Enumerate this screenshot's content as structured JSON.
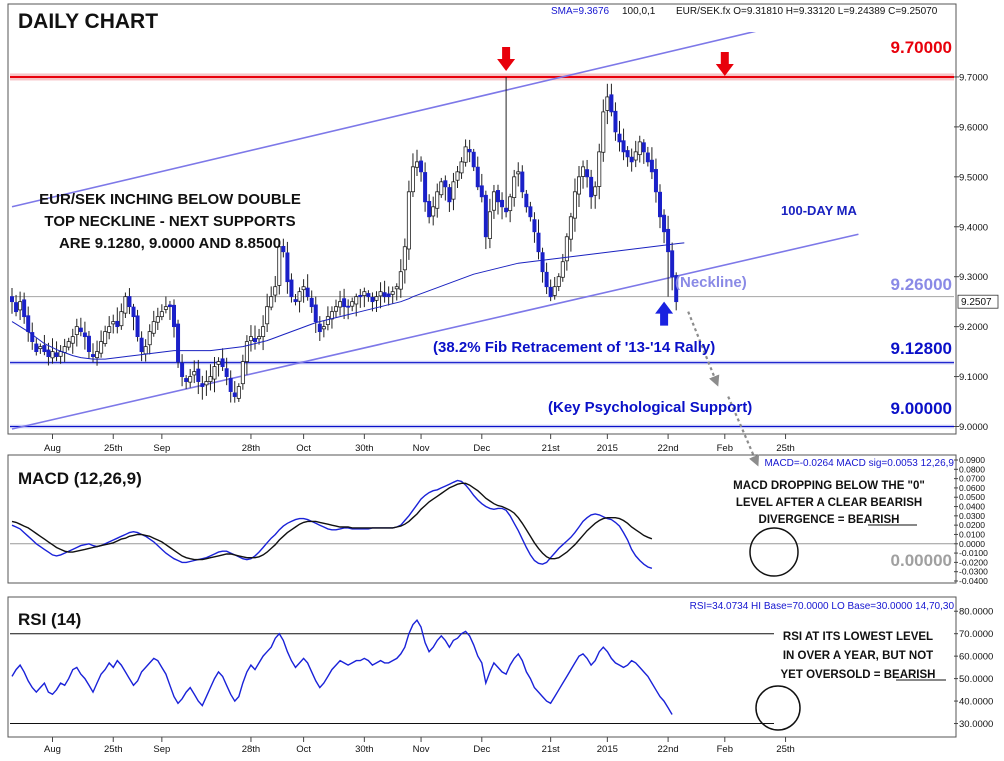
{
  "header": {
    "title": "DAILY CHART",
    "sma_label": "SMA=9.3676",
    "sma_params": "100,0,1",
    "ohlc": "EUR/SEK.fx O=9.31810 H=9.33120 L=9.24389 C=9.25070"
  },
  "price_panel": {
    "annotation_lines": [
      "EUR/SEK INCHING BELOW DOUBLE",
      "TOP NECKLINE - NEXT SUPPORTS",
      "ARE 9.1280, 9.0000 AND 8.8500"
    ],
    "ma_label": "100-DAY MA",
    "neckline_label": "(Neckline)",
    "fib_label": "(38.2% Fib Retracement of '13-'14 Rally)",
    "psych_label": "(Key Psychological Support)",
    "levels": [
      {
        "value": 9.7,
        "label": "9.70000",
        "color": "#e8000b"
      },
      {
        "value": 9.26,
        "label": "9.26000",
        "color": "#8a8ae6"
      },
      {
        "value": 9.128,
        "label": "9.12800",
        "color": "#0a10c8"
      },
      {
        "value": 9.0,
        "label": "9.00000",
        "color": "#0a10c8"
      }
    ],
    "current_price_tag": "9.2507"
  },
  "macd_panel": {
    "title": "MACD (12,26,9)",
    "readout": "MACD=-0.0264 MACD sig=0.0053  12,26,9",
    "annotation_lines": [
      "MACD DROPPING BELOW THE \"0\"",
      "LEVEL AFTER A CLEAR BEARISH",
      "DIVERGENCE = BEARISH"
    ],
    "emph_word": "BEARISH",
    "zero_label": "0.00000"
  },
  "rsi_panel": {
    "title": "RSI (14)",
    "readout": "RSI=34.0734 HI Base=70.0000 LO Base=30.0000   14,70,30",
    "annotation_lines": [
      "RSI AT ITS LOWEST LEVEL",
      "IN OVER A YEAR, BUT NOT",
      "YET OVERSOLD = BEARISH"
    ],
    "emph_word": "BEARISH"
  },
  "x_axis": {
    "ticks": [
      {
        "t": 10,
        "label": "Aug"
      },
      {
        "t": 25,
        "label": "25th"
      },
      {
        "t": 37,
        "label": "Sep"
      },
      {
        "t": 59,
        "label": "28th"
      },
      {
        "t": 72,
        "label": "Oct"
      },
      {
        "t": 87,
        "label": "30th"
      },
      {
        "t": 101,
        "label": "Nov"
      },
      {
        "t": 116,
        "label": "Dec"
      },
      {
        "t": 133,
        "label": "21st"
      },
      {
        "t": 147,
        "label": "2015"
      },
      {
        "t": 162,
        "label": "22nd"
      },
      {
        "t": 176,
        "label": "Feb"
      },
      {
        "t": 191,
        "label": "25th"
      }
    ]
  },
  "chart_data": [
    {
      "type": "candlestick",
      "title": "DAILY CHART",
      "symbol": "EUR/SEK",
      "y_ticks": [
        9.0,
        9.1,
        9.2,
        9.3,
        9.4,
        9.5,
        9.6,
        9.7
      ],
      "y_tick_labels": [
        "9.0000",
        "9.1000",
        "9.2000",
        "9.3000",
        "9.4000",
        "9.5000",
        "9.6000",
        "9.7000"
      ],
      "ylim": [
        8.985,
        9.79
      ],
      "series": [
        {
          "name": "EUR/SEK",
          "close": [
            9.25,
            9.23,
            9.25,
            9.22,
            9.19,
            9.17,
            9.15,
            9.16,
            9.15,
            9.14,
            9.15,
            9.14,
            9.15,
            9.16,
            9.17,
            9.18,
            9.2,
            9.19,
            9.18,
            9.15,
            9.14,
            9.15,
            9.17,
            9.19,
            9.2,
            9.21,
            9.2,
            9.23,
            9.26,
            9.24,
            9.22,
            9.18,
            9.15,
            9.16,
            9.19,
            9.21,
            9.22,
            9.23,
            9.24,
            9.24,
            9.2,
            9.13,
            9.1,
            9.09,
            9.1,
            9.11,
            9.09,
            9.08,
            9.09,
            9.1,
            9.12,
            9.13,
            9.12,
            9.1,
            9.07,
            9.06,
            9.08,
            9.13,
            9.17,
            9.18,
            9.17,
            9.18,
            9.2,
            9.24,
            9.26,
            9.28,
            9.36,
            9.35,
            9.29,
            9.26,
            9.25,
            9.27,
            9.28,
            9.26,
            9.24,
            9.21,
            9.19,
            9.2,
            9.22,
            9.23,
            9.24,
            9.25,
            9.24,
            9.24,
            9.25,
            9.26,
            9.26,
            9.27,
            9.26,
            9.25,
            9.26,
            9.27,
            9.26,
            9.26,
            9.27,
            9.28,
            9.31,
            9.36,
            9.47,
            9.52,
            9.53,
            9.51,
            9.45,
            9.42,
            9.44,
            9.47,
            9.49,
            9.48,
            9.45,
            9.49,
            9.51,
            9.53,
            9.56,
            9.55,
            9.52,
            9.48,
            9.46,
            9.38,
            9.43,
            9.47,
            9.45,
            9.44,
            9.43,
            9.46,
            9.5,
            9.51,
            9.47,
            9.44,
            9.42,
            9.39,
            9.35,
            9.31,
            9.28,
            9.26,
            9.28,
            9.3,
            9.33,
            9.38,
            9.42,
            9.47,
            9.5,
            9.52,
            9.5,
            9.46,
            9.48,
            9.55,
            9.63,
            9.66,
            9.63,
            9.59,
            9.57,
            9.55,
            9.54,
            9.53,
            9.55,
            9.57,
            9.55,
            9.53,
            9.51,
            9.47,
            9.42,
            9.39,
            9.35,
            9.3,
            9.25
          ],
          "sma100": [
            9.21,
            9.205,
            9.2,
            9.195,
            9.19,
            9.184,
            9.178,
            9.172,
            9.166,
            9.162,
            9.158,
            9.154,
            9.151,
            9.148,
            9.145,
            9.142,
            9.14,
            9.138,
            9.137,
            9.136,
            9.135,
            9.135,
            9.135,
            9.135,
            9.136,
            9.137,
            9.138,
            9.139,
            9.14,
            9.141,
            9.142,
            9.143,
            9.144,
            9.145,
            9.146,
            9.147,
            9.148,
            9.149,
            9.15,
            9.151,
            9.152,
            9.152,
            9.152,
            9.152,
            9.152,
            9.152,
            9.152,
            9.152,
            9.152,
            9.152,
            9.153,
            9.154,
            9.155,
            9.156,
            9.157,
            9.158,
            9.159,
            9.16,
            9.162,
            9.164,
            9.166,
            9.168,
            9.17,
            9.172,
            9.175,
            9.178,
            9.181,
            9.184,
            9.187,
            9.19,
            9.193,
            9.196,
            9.199,
            9.202,
            9.205,
            9.208,
            9.21,
            9.212,
            9.214,
            9.216,
            9.218,
            9.22,
            9.222,
            9.224,
            9.226,
            9.228,
            9.23,
            9.232,
            9.234,
            9.236,
            9.238,
            9.24,
            9.242,
            9.244,
            9.246,
            9.248,
            9.25,
            9.253,
            9.256,
            9.26,
            9.263,
            9.266,
            9.269,
            9.272,
            9.275,
            9.278,
            9.281,
            9.284,
            9.287,
            9.29,
            9.293,
            9.296,
            9.299,
            9.302,
            9.305,
            9.307,
            9.309,
            9.311,
            9.313,
            9.315,
            9.317,
            9.319,
            9.321,
            9.323,
            9.325,
            9.327,
            9.328,
            9.329,
            9.33,
            9.331,
            9.332,
            9.333,
            9.334,
            9.335,
            9.336,
            9.337,
            9.338,
            9.339,
            9.34,
            9.341,
            9.342,
            9.343,
            9.344,
            9.345,
            9.346,
            9.347,
            9.348,
            9.349,
            9.35,
            9.351,
            9.352,
            9.353,
            9.354,
            9.355,
            9.356,
            9.357,
            9.358,
            9.359,
            9.36,
            9.361,
            9.362,
            9.363,
            9.364,
            9.365,
            9.366,
            9.367,
            9.3676
          ]
        }
      ],
      "horizontal_levels": [
        9.7,
        9.26,
        9.128,
        9.0
      ],
      "trendlines": [
        {
          "name": "upper channel",
          "start": [
            0,
            9.44
          ],
          "end": [
            209,
            9.84
          ]
        },
        {
          "name": "neckline",
          "start": [
            0,
            8.995
          ],
          "end": [
            209,
            9.385
          ]
        }
      ],
      "peaks": [
        {
          "t": 122,
          "value": 9.7
        },
        {
          "t": 176,
          "value": 9.69
        }
      ],
      "trough": {
        "t": 162,
        "value": 9.26
      }
    },
    {
      "type": "line",
      "title": "MACD (12,26,9)",
      "y_ticks": [
        0.09,
        0.08,
        0.07,
        0.06,
        0.05,
        0.04,
        0.03,
        0.02,
        0.01,
        0.0,
        -0.01,
        -0.02,
        -0.03,
        -0.04
      ],
      "y_tick_labels": [
        "0.0900",
        "0.0800",
        "0.0700",
        "0.0600",
        "0.0500",
        "0.0400",
        "0.0300",
        "0.0200",
        "0.0100",
        "0.0000",
        "-0.0100",
        "-0.0200",
        "-0.0300",
        "-0.0400"
      ],
      "ylim": [
        -0.04,
        0.09
      ],
      "series": [
        {
          "name": "MACD",
          "values": [
            0.02,
            0.018,
            0.016,
            0.012,
            0.008,
            0.004,
            0.0,
            -0.003,
            -0.006,
            -0.009,
            -0.012,
            -0.013,
            -0.012,
            -0.01,
            -0.008,
            -0.006,
            -0.004,
            -0.002,
            -0.001,
            0.0,
            -0.002,
            -0.003,
            -0.002,
            0.0,
            0.002,
            0.004,
            0.006,
            0.008,
            0.01,
            0.012,
            0.013,
            0.012,
            0.01,
            0.008,
            0.005,
            0.002,
            -0.002,
            -0.006,
            -0.01,
            -0.013,
            -0.016,
            -0.018,
            -0.02,
            -0.02,
            -0.019,
            -0.018,
            -0.017,
            -0.016,
            -0.015,
            -0.013,
            -0.011,
            -0.009,
            -0.008,
            -0.008,
            -0.01,
            -0.012,
            -0.014,
            -0.016,
            -0.017,
            -0.016,
            -0.013,
            -0.009,
            -0.004,
            0.001,
            0.006,
            0.01,
            0.015,
            0.019,
            0.022,
            0.024,
            0.026,
            0.027,
            0.027,
            0.026,
            0.024,
            0.022,
            0.02,
            0.018,
            0.016,
            0.015,
            0.015,
            0.016,
            0.017,
            0.017,
            0.016,
            0.016,
            0.016,
            0.016,
            0.016,
            0.017,
            0.017,
            0.017,
            0.017,
            0.017,
            0.017,
            0.018,
            0.02,
            0.025,
            0.03,
            0.036,
            0.042,
            0.048,
            0.052,
            0.055,
            0.057,
            0.058,
            0.06,
            0.062,
            0.064,
            0.066,
            0.068,
            0.067,
            0.063,
            0.058,
            0.052,
            0.047,
            0.043,
            0.04,
            0.038,
            0.037,
            0.038,
            0.038,
            0.036,
            0.03,
            0.022,
            0.014,
            0.005,
            -0.004,
            -0.012,
            -0.018,
            -0.021,
            -0.022,
            -0.02,
            -0.015,
            -0.01,
            -0.005,
            -0.001,
            0.003,
            0.007,
            0.012,
            0.018,
            0.024,
            0.028,
            0.031,
            0.032,
            0.031,
            0.029,
            0.027,
            0.026,
            0.023,
            0.019,
            0.012,
            0.004,
            -0.006,
            -0.013,
            -0.018,
            -0.022,
            -0.025,
            -0.0264
          ]
        },
        {
          "name": "MACD sig",
          "values": [
            0.024,
            0.023,
            0.021,
            0.019,
            0.017,
            0.014,
            0.011,
            0.008,
            0.005,
            0.002,
            -0.001,
            -0.004,
            -0.006,
            -0.008,
            -0.009,
            -0.009,
            -0.008,
            -0.007,
            -0.006,
            -0.005,
            -0.004,
            -0.003,
            -0.002,
            -0.001,
            0.0,
            0.001,
            0.003,
            0.005,
            0.006,
            0.008,
            0.009,
            0.01,
            0.01,
            0.009,
            0.008,
            0.006,
            0.004,
            0.002,
            -0.001,
            -0.004,
            -0.007,
            -0.01,
            -0.013,
            -0.015,
            -0.016,
            -0.017,
            -0.017,
            -0.017,
            -0.016,
            -0.015,
            -0.014,
            -0.013,
            -0.012,
            -0.011,
            -0.011,
            -0.012,
            -0.013,
            -0.014,
            -0.015,
            -0.015,
            -0.015,
            -0.014,
            -0.012,
            -0.009,
            -0.005,
            -0.001,
            0.004,
            0.008,
            0.012,
            0.015,
            0.018,
            0.021,
            0.023,
            0.024,
            0.024,
            0.024,
            0.023,
            0.022,
            0.021,
            0.02,
            0.019,
            0.018,
            0.018,
            0.018,
            0.017,
            0.017,
            0.017,
            0.017,
            0.017,
            0.017,
            0.017,
            0.017,
            0.017,
            0.017,
            0.017,
            0.018,
            0.019,
            0.021,
            0.024,
            0.028,
            0.032,
            0.037,
            0.041,
            0.045,
            0.048,
            0.051,
            0.054,
            0.057,
            0.06,
            0.062,
            0.064,
            0.065,
            0.065,
            0.063,
            0.06,
            0.057,
            0.053,
            0.049,
            0.046,
            0.043,
            0.041,
            0.04,
            0.038,
            0.036,
            0.033,
            0.028,
            0.022,
            0.015,
            0.008,
            0.001,
            -0.005,
            -0.01,
            -0.014,
            -0.016,
            -0.016,
            -0.015,
            -0.012,
            -0.009,
            -0.005,
            -0.001,
            0.004,
            0.009,
            0.014,
            0.018,
            0.022,
            0.025,
            0.027,
            0.028,
            0.028,
            0.028,
            0.027,
            0.025,
            0.022,
            0.018,
            0.015,
            0.012,
            0.009,
            0.007,
            0.0053
          ]
        }
      ]
    },
    {
      "type": "line",
      "title": "RSI (14)",
      "y_ticks": [
        30,
        40,
        50,
        60,
        70,
        80
      ],
      "y_tick_labels": [
        "30.0000",
        "40.0000",
        "50.0000",
        "60.0000",
        "70.0000",
        "80.0000"
      ],
      "ylim": [
        24,
        85
      ],
      "reference_levels": [
        70,
        30
      ],
      "series": [
        {
          "name": "RSI",
          "values": [
            51,
            54,
            56,
            53,
            49,
            46,
            44,
            46,
            48,
            44,
            43,
            45,
            48,
            47,
            50,
            54,
            55,
            52,
            50,
            47,
            44,
            48,
            52,
            54,
            57,
            55,
            58,
            56,
            53,
            50,
            47,
            49,
            53,
            55,
            57,
            59,
            58,
            55,
            52,
            47,
            42,
            39,
            41,
            44,
            46,
            43,
            40,
            38,
            42,
            46,
            50,
            53,
            51,
            47,
            43,
            40,
            42,
            48,
            53,
            56,
            54,
            57,
            60,
            62,
            64,
            68,
            70,
            67,
            62,
            58,
            55,
            57,
            59,
            57,
            53,
            49,
            46,
            48,
            51,
            54,
            56,
            58,
            57,
            56,
            57,
            58,
            58,
            59,
            58,
            56,
            57,
            58,
            57,
            57,
            58,
            59,
            61,
            64,
            70,
            74,
            76,
            73,
            66,
            62,
            64,
            67,
            69,
            67,
            64,
            67,
            68,
            70,
            71,
            69,
            65,
            60,
            57,
            48,
            53,
            57,
            55,
            53,
            52,
            56,
            59,
            61,
            58,
            53,
            50,
            46,
            44,
            42,
            40,
            39,
            42,
            45,
            48,
            51,
            54,
            57,
            60,
            61,
            59,
            56,
            58,
            62,
            64,
            62,
            59,
            57,
            56,
            55,
            56,
            58,
            57,
            55,
            53,
            51,
            48,
            45,
            42,
            40,
            37,
            34
          ]
        }
      ]
    }
  ]
}
